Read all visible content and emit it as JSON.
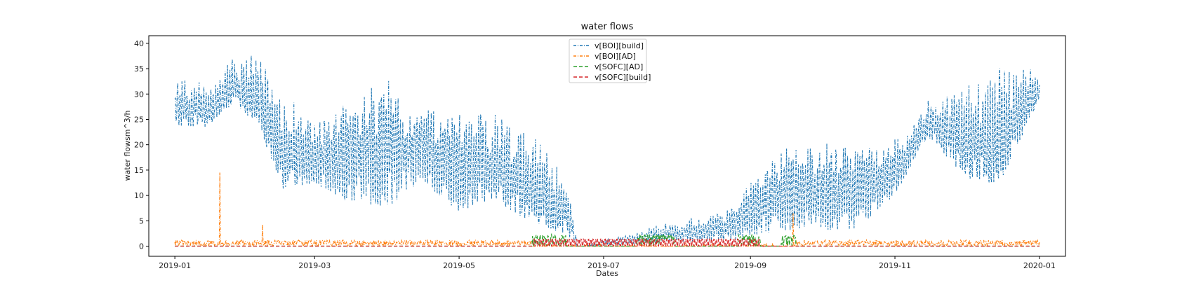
{
  "chart_data": {
    "type": "line",
    "title": "water flows",
    "xlabel": "Dates",
    "ylabel": "water flowsm^3/h",
    "x_range": [
      "2019-01-01",
      "2020-01-01"
    ],
    "xlim": [
      "2018-12-21",
      "2020-01-12"
    ],
    "ylim": [
      -2,
      41.5
    ],
    "y_ticks": [
      0,
      5,
      10,
      15,
      20,
      25,
      30,
      35,
      40
    ],
    "x_ticks": [
      "2019-01",
      "2019-03",
      "2019-05",
      "2019-07",
      "2019-09",
      "2019-11",
      "2020-01"
    ],
    "x_tick_dates": [
      "2019-01-01",
      "2019-03-01",
      "2019-05-01",
      "2019-07-01",
      "2019-09-01",
      "2019-11-01",
      "2020-01-01"
    ],
    "grid": false,
    "legend_position": "top-center",
    "series": [
      {
        "name": "v[BOI][build]",
        "color": "#1f77b4",
        "dash": "dashdot",
        "envelope_dates": [
          "2019-01-01",
          "2019-01-15",
          "2019-01-25",
          "2019-02-05",
          "2019-02-15",
          "2019-03-01",
          "2019-03-15",
          "2019-04-01",
          "2019-04-15",
          "2019-05-01",
          "2019-05-15",
          "2019-06-01",
          "2019-06-15",
          "2019-06-20",
          "2019-08-25",
          "2019-09-01",
          "2019-09-15",
          "2019-10-01",
          "2019-10-15",
          "2019-11-01",
          "2019-11-15",
          "2019-12-01",
          "2019-12-15",
          "2020-01-01"
        ],
        "envelope_low": [
          22,
          22,
          26,
          22,
          8,
          10,
          5,
          3,
          10,
          3,
          6,
          1,
          0,
          0,
          0,
          0,
          0,
          0,
          0,
          8,
          20,
          10,
          8,
          28
        ],
        "envelope_high": [
          34,
          32,
          38,
          38,
          30,
          26,
          30,
          34,
          30,
          28,
          28,
          24,
          16,
          0,
          8,
          14,
          20,
          22,
          20,
          22,
          30,
          33,
          36,
          35
        ]
      },
      {
        "name": "v[BOI][AD]",
        "color": "#ff7f0e",
        "dash": "dashdot",
        "baseline": [
          0,
          1.2
        ],
        "spikes": [
          {
            "date": "2019-01-20",
            "value": 14.5
          },
          {
            "date": "2019-02-07",
            "value": 4.3
          },
          {
            "date": "2019-09-19",
            "value": 6.5
          }
        ]
      },
      {
        "name": "v[SOFC][AD]",
        "color": "#2ca02c",
        "dash": "dashed",
        "active_periods": [
          [
            "2019-06-01",
            "2019-06-15"
          ],
          [
            "2019-07-15",
            "2019-07-31"
          ],
          [
            "2019-08-27",
            "2019-09-05"
          ],
          [
            "2019-09-14",
            "2019-09-20"
          ]
        ],
        "max_value": 2.3
      },
      {
        "name": "v[SOFC][build]",
        "color": "#d62728",
        "dash": "dashed",
        "active_period": [
          "2019-06-01",
          "2019-09-05"
        ],
        "band": [
          0,
          1.4
        ]
      }
    ]
  }
}
